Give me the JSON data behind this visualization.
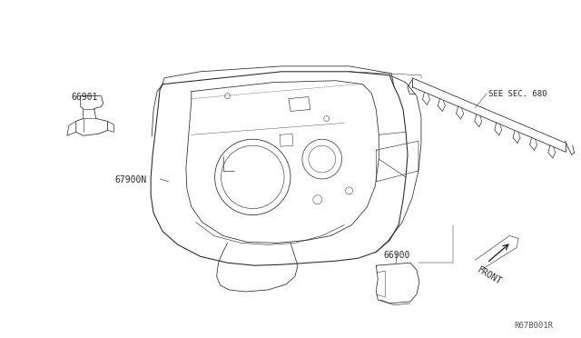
{
  "background_color": "#ffffff",
  "fig_width": 6.4,
  "fig_height": 3.72,
  "dpi": 100,
  "labels": {
    "part_66901": "66901",
    "part_67900N": "67900N",
    "part_66900": "66900",
    "see_sec": "SEE SEC. 680",
    "front": "FRONT",
    "ref_code": "R67B001R"
  },
  "line_color": "#2a2a2a",
  "line_width": 0.7
}
